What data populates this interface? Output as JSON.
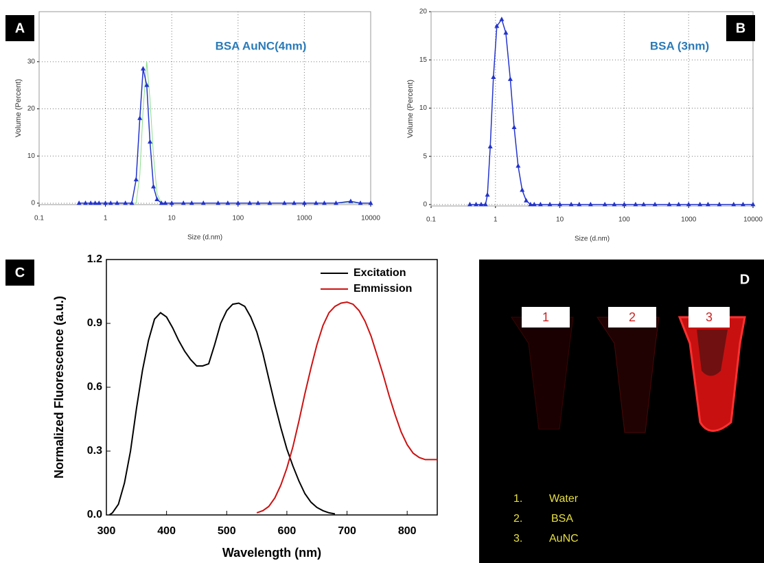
{
  "chart_data": [
    {
      "type": "line",
      "panel_label": "A",
      "title": "BSA AuNC(4nm)",
      "x_label": "Size (d.nm)",
      "y_label": "Volume (Percent)",
      "x": [
        0.4,
        0.5,
        0.6,
        0.7,
        0.8,
        1,
        1.2,
        1.5,
        2,
        2.5,
        2.9,
        3.3,
        3.7,
        4.2,
        4.7,
        5.3,
        6,
        7,
        8,
        10,
        15,
        20,
        30,
        50,
        70,
        100,
        150,
        200,
        300,
        500,
        700,
        1000,
        1500,
        2000,
        3000,
        5000,
        7000,
        10000
      ],
      "series": [
        {
          "color": "#88dd88",
          "values": [
            0,
            0,
            0,
            0,
            0,
            0,
            0,
            0,
            0,
            0,
            0,
            6,
            20,
            30,
            22,
            10,
            2,
            0,
            0,
            0,
            0,
            0,
            0,
            0,
            0,
            0,
            0,
            0,
            0,
            0,
            0,
            0,
            0,
            0,
            0,
            0,
            0,
            0
          ]
        },
        {
          "color": "#2233cc",
          "marker": "triangle",
          "values": [
            0,
            0,
            0,
            0,
            0,
            0,
            0,
            0,
            0,
            0,
            5,
            18,
            28.5,
            25,
            13,
            3.5,
            0.8,
            0,
            0,
            0,
            0,
            0,
            0,
            0,
            0,
            0,
            0,
            0,
            0,
            0,
            0,
            0,
            0,
            0,
            0,
            0.4,
            0,
            0
          ]
        }
      ],
      "x_log": true,
      "grid": true,
      "xlim": [
        0.1,
        10000
      ],
      "xticks": [
        0.1,
        1,
        10,
        100,
        1000,
        10000
      ],
      "ylim": [
        -0.3,
        40.6
      ],
      "yticks": [
        0,
        10,
        20,
        30
      ]
    },
    {
      "type": "line",
      "panel_label": "B",
      "title": "BSA (3nm)",
      "x_label": "Size (d.nm)",
      "y_label": "Volume (Percent)",
      "x": [
        0.4,
        0.5,
        0.6,
        0.7,
        0.75,
        0.83,
        0.93,
        1.05,
        1.25,
        1.45,
        1.7,
        1.95,
        2.25,
        2.6,
        3,
        3.5,
        4,
        5,
        7,
        10,
        15,
        20,
        30,
        50,
        70,
        100,
        150,
        200,
        300,
        500,
        700,
        1000,
        1500,
        2000,
        3000,
        5000,
        7000,
        10000
      ],
      "series": [
        {
          "color": "#2233cc",
          "marker": "triangle",
          "values": [
            0,
            0,
            0,
            0,
            1,
            6,
            13.2,
            18.5,
            19.2,
            17.8,
            13,
            8,
            4,
            1.5,
            0.4,
            0,
            0,
            0,
            0,
            0,
            0,
            0,
            0,
            0,
            0,
            0,
            0,
            0,
            0,
            0,
            0,
            0,
            0,
            0,
            0,
            0,
            0,
            0
          ]
        }
      ],
      "x_log": true,
      "grid": true,
      "xlim": [
        0.1,
        10000
      ],
      "xticks": [
        0.1,
        1,
        10,
        100,
        1000,
        10000
      ],
      "ylim": [
        -0.15,
        20
      ],
      "yticks": [
        0,
        5,
        10,
        15,
        20
      ]
    },
    {
      "type": "line",
      "panel_label": "C",
      "x_label": "Wavelength (nm)",
      "y_label": "Normalized Fluorescence (a.u.)",
      "legend": "top-right",
      "grid": false,
      "series": [
        {
          "name": "Excitation",
          "color": "#000000",
          "x": [
            305,
            310,
            320,
            330,
            340,
            350,
            360,
            370,
            380,
            390,
            400,
            410,
            420,
            430,
            440,
            450,
            460,
            470,
            480,
            490,
            500,
            510,
            520,
            530,
            540,
            550,
            560,
            570,
            580,
            590,
            600,
            610,
            620,
            630,
            640,
            650,
            660,
            670,
            680
          ],
          "values": [
            0,
            0.01,
            0.05,
            0.15,
            0.3,
            0.5,
            0.68,
            0.82,
            0.92,
            0.95,
            0.93,
            0.88,
            0.82,
            0.77,
            0.73,
            0.7,
            0.7,
            0.71,
            0.8,
            0.9,
            0.96,
            0.99,
            0.995,
            0.98,
            0.93,
            0.86,
            0.76,
            0.64,
            0.52,
            0.41,
            0.31,
            0.23,
            0.16,
            0.1,
            0.06,
            0.035,
            0.02,
            0.01,
            0.005
          ]
        },
        {
          "name": "Emmission",
          "color": "#cc1111",
          "x": [
            550,
            560,
            570,
            580,
            590,
            600,
            610,
            620,
            630,
            640,
            650,
            660,
            670,
            680,
            690,
            700,
            710,
            720,
            730,
            740,
            750,
            760,
            770,
            780,
            790,
            800,
            810,
            820,
            830,
            840,
            850
          ],
          "values": [
            0.01,
            0.02,
            0.04,
            0.08,
            0.14,
            0.22,
            0.32,
            0.44,
            0.57,
            0.69,
            0.8,
            0.89,
            0.95,
            0.98,
            0.995,
            1,
            0.99,
            0.96,
            0.91,
            0.84,
            0.75,
            0.66,
            0.56,
            0.47,
            0.39,
            0.33,
            0.29,
            0.27,
            0.26,
            0.26,
            0.26
          ]
        }
      ],
      "xlim": [
        300,
        850
      ],
      "xticks": [
        300,
        400,
        500,
        600,
        700,
        800
      ],
      "ylim": [
        0,
        1.2
      ],
      "yticks": [
        {
          "value": 0,
          "label": "0.0"
        },
        0.3,
        0.6,
        0.9,
        1.2
      ]
    }
  ],
  "panel_d": {
    "panel_label": "D",
    "tube_labels": [
      "1",
      "2",
      "3"
    ],
    "legend": [
      {
        "number": "1.",
        "name": "Water"
      },
      {
        "number": "2.",
        "name": "BSA"
      },
      {
        "number": "3.",
        "name": "AuNC"
      }
    ]
  }
}
